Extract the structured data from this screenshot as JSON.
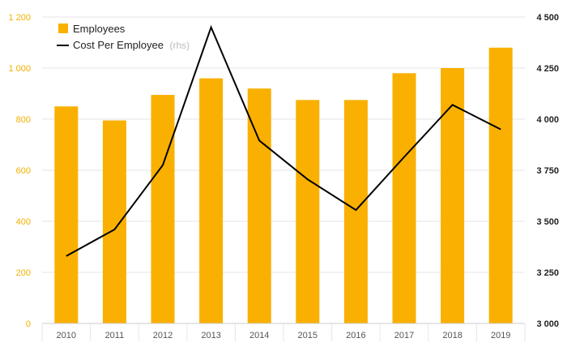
{
  "chart_data": {
    "type": "bar+line",
    "categories": [
      "2010",
      "2011",
      "2012",
      "2013",
      "2014",
      "2015",
      "2016",
      "2017",
      "2018",
      "2019"
    ],
    "series": [
      {
        "name": "Employees",
        "type": "bar",
        "axis": "left",
        "values": [
          850,
          795,
          895,
          960,
          920,
          875,
          875,
          980,
          1000,
          1080
        ]
      },
      {
        "name": "Cost Per Employee",
        "name_suffix": "(rhs)",
        "type": "line",
        "axis": "right",
        "values": [
          3330,
          3460,
          3775,
          4450,
          3895,
          3705,
          3555,
          3815,
          4070,
          3950
        ]
      }
    ],
    "left_axis": {
      "min": 0,
      "max": 1200,
      "ticks": [
        "0",
        "200",
        "400",
        "600",
        "800",
        "1 000",
        "1 200"
      ]
    },
    "right_axis": {
      "min": 3000,
      "max": 4500,
      "ticks": [
        "3 000",
        "3 250",
        "3 500",
        "3 750",
        "4 000",
        "4 250",
        "4 500"
      ]
    },
    "grid": true,
    "legend_position": "top-left",
    "colors": {
      "bar": "#f9b000",
      "line": "#000000",
      "grid": "#e6e6e6",
      "left_tick": "#f2b000"
    }
  }
}
